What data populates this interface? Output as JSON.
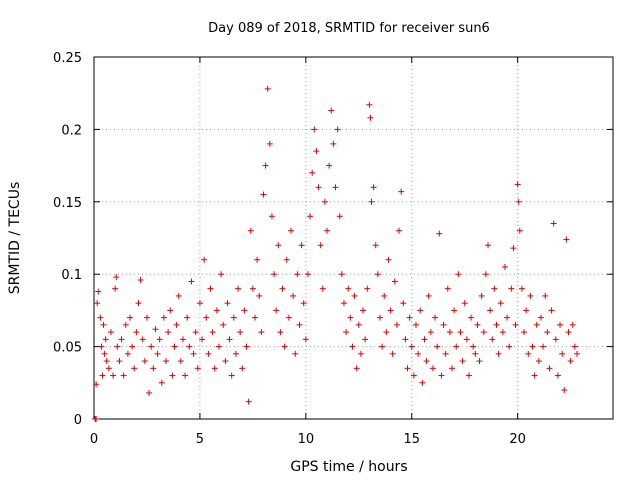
{
  "chart_data": {
    "type": "scatter",
    "title": "Day 089 of 2018, SRMTID for receiver sun6",
    "xlabel": "GPS time / hours",
    "ylabel": "SRMTID / TECUs",
    "xlim": [
      0,
      24.5
    ],
    "ylim": [
      0,
      0.25
    ],
    "xticks": [
      0,
      5,
      10,
      15,
      20
    ],
    "xtick_labels": [
      "0",
      "5",
      "10",
      "15",
      "20"
    ],
    "yticks": [
      0,
      0.05,
      0.1,
      0.15,
      0.2,
      0.25
    ],
    "ytick_labels": [
      "0",
      "0.05",
      "0.1",
      "0.15",
      "0.2",
      "0.25"
    ],
    "grid": true,
    "marker": "+",
    "color": "#e00000",
    "series": [
      {
        "name": "SRMTID",
        "points": [
          [
            0.05,
            0.0
          ],
          [
            0.1,
            0.0
          ],
          [
            0.1,
            0.024
          ],
          [
            0.15,
            0.08
          ],
          [
            0.2,
            0.088
          ],
          [
            0.3,
            0.07
          ],
          [
            0.35,
            0.05
          ],
          [
            0.4,
            0.03
          ],
          [
            0.45,
            0.065
          ],
          [
            0.5,
            0.045
          ],
          [
            0.55,
            0.055
          ],
          [
            0.6,
            0.04
          ],
          [
            0.7,
            0.035
          ],
          [
            0.8,
            0.06
          ],
          [
            0.9,
            0.03
          ],
          [
            1.0,
            0.09
          ],
          [
            1.05,
            0.098
          ],
          [
            1.1,
            0.05
          ],
          [
            1.2,
            0.04
          ],
          [
            1.3,
            0.055
          ],
          [
            1.4,
            0.03
          ],
          [
            1.5,
            0.065
          ],
          [
            1.6,
            0.045
          ],
          [
            1.7,
            0.07
          ],
          [
            1.8,
            0.05
          ],
          [
            1.9,
            0.035
          ],
          [
            2.0,
            0.06
          ],
          [
            2.1,
            0.08
          ],
          [
            2.2,
            0.096
          ],
          [
            2.3,
            0.055
          ],
          [
            2.4,
            0.04
          ],
          [
            2.5,
            0.07
          ],
          [
            2.6,
            0.018
          ],
          [
            2.7,
            0.05
          ],
          [
            2.8,
            0.035
          ],
          [
            2.9,
            0.062
          ],
          [
            3.0,
            0.045
          ],
          [
            3.1,
            0.055
          ],
          [
            3.2,
            0.025
          ],
          [
            3.3,
            0.07
          ],
          [
            3.4,
            0.04
          ],
          [
            3.5,
            0.06
          ],
          [
            3.6,
            0.075
          ],
          [
            3.7,
            0.03
          ],
          [
            3.8,
            0.05
          ],
          [
            3.9,
            0.065
          ],
          [
            4.0,
            0.085
          ],
          [
            4.1,
            0.04
          ],
          [
            4.2,
            0.055
          ],
          [
            4.3,
            0.03
          ],
          [
            4.4,
            0.07
          ],
          [
            4.5,
            0.05
          ],
          [
            4.6,
            0.095
          ],
          [
            4.7,
            0.045
          ],
          [
            4.8,
            0.06
          ],
          [
            4.9,
            0.035
          ],
          [
            5.0,
            0.08
          ],
          [
            5.1,
            0.055
          ],
          [
            5.2,
            0.11
          ],
          [
            5.3,
            0.07
          ],
          [
            5.4,
            0.045
          ],
          [
            5.5,
            0.09
          ],
          [
            5.6,
            0.06
          ],
          [
            5.7,
            0.035
          ],
          [
            5.8,
            0.075
          ],
          [
            5.9,
            0.05
          ],
          [
            6.0,
            0.1
          ],
          [
            6.1,
            0.065
          ],
          [
            6.2,
            0.04
          ],
          [
            6.3,
            0.08
          ],
          [
            6.4,
            0.055
          ],
          [
            6.5,
            0.03
          ],
          [
            6.6,
            0.07
          ],
          [
            6.7,
            0.045
          ],
          [
            6.8,
            0.09
          ],
          [
            6.9,
            0.06
          ],
          [
            7.0,
            0.035
          ],
          [
            7.1,
            0.075
          ],
          [
            7.2,
            0.05
          ],
          [
            7.3,
            0.012
          ],
          [
            7.4,
            0.13
          ],
          [
            7.5,
            0.09
          ],
          [
            7.6,
            0.07
          ],
          [
            7.7,
            0.11
          ],
          [
            7.8,
            0.085
          ],
          [
            7.9,
            0.06
          ],
          [
            8.0,
            0.155
          ],
          [
            8.1,
            0.175
          ],
          [
            8.2,
            0.228
          ],
          [
            8.3,
            0.19
          ],
          [
            8.4,
            0.14
          ],
          [
            8.5,
            0.1
          ],
          [
            8.6,
            0.075
          ],
          [
            8.7,
            0.12
          ],
          [
            8.8,
            0.06
          ],
          [
            8.9,
            0.09
          ],
          [
            9.0,
            0.05
          ],
          [
            9.1,
            0.11
          ],
          [
            9.2,
            0.07
          ],
          [
            9.3,
            0.13
          ],
          [
            9.4,
            0.085
          ],
          [
            9.5,
            0.045
          ],
          [
            9.6,
            0.1
          ],
          [
            9.7,
            0.065
          ],
          [
            9.8,
            0.12
          ],
          [
            9.9,
            0.08
          ],
          [
            10.0,
            0.055
          ],
          [
            10.1,
            0.1
          ],
          [
            10.2,
            0.14
          ],
          [
            10.3,
            0.17
          ],
          [
            10.4,
            0.2
          ],
          [
            10.5,
            0.185
          ],
          [
            10.6,
            0.16
          ],
          [
            10.7,
            0.12
          ],
          [
            10.8,
            0.09
          ],
          [
            10.9,
            0.15
          ],
          [
            11.0,
            0.13
          ],
          [
            11.1,
            0.175
          ],
          [
            11.2,
            0.213
          ],
          [
            11.3,
            0.19
          ],
          [
            11.4,
            0.16
          ],
          [
            11.5,
            0.2
          ],
          [
            11.6,
            0.14
          ],
          [
            11.7,
            0.1
          ],
          [
            11.8,
            0.08
          ],
          [
            11.9,
            0.06
          ],
          [
            12.0,
            0.09
          ],
          [
            12.1,
            0.07
          ],
          [
            12.2,
            0.05
          ],
          [
            12.3,
            0.085
          ],
          [
            12.4,
            0.035
          ],
          [
            12.5,
            0.065
          ],
          [
            12.6,
            0.045
          ],
          [
            12.7,
            0.075
          ],
          [
            12.8,
            0.055
          ],
          [
            12.9,
            0.09
          ],
          [
            13.0,
            0.217
          ],
          [
            13.05,
            0.208
          ],
          [
            13.1,
            0.15
          ],
          [
            13.2,
            0.16
          ],
          [
            13.3,
            0.12
          ],
          [
            13.4,
            0.1
          ],
          [
            13.5,
            0.07
          ],
          [
            13.6,
            0.05
          ],
          [
            13.7,
            0.085
          ],
          [
            13.8,
            0.06
          ],
          [
            13.9,
            0.11
          ],
          [
            14.0,
            0.075
          ],
          [
            14.1,
            0.045
          ],
          [
            14.2,
            0.095
          ],
          [
            14.3,
            0.065
          ],
          [
            14.4,
            0.13
          ],
          [
            14.5,
            0.157
          ],
          [
            14.6,
            0.08
          ],
          [
            14.7,
            0.055
          ],
          [
            14.8,
            0.035
          ],
          [
            14.9,
            0.07
          ],
          [
            15.0,
            0.05
          ],
          [
            15.1,
            0.03
          ],
          [
            15.2,
            0.065
          ],
          [
            15.3,
            0.045
          ],
          [
            15.4,
            0.075
          ],
          [
            15.5,
            0.025
          ],
          [
            15.6,
            0.055
          ],
          [
            15.7,
            0.04
          ],
          [
            15.8,
            0.085
          ],
          [
            15.9,
            0.06
          ],
          [
            16.0,
            0.035
          ],
          [
            16.1,
            0.07
          ],
          [
            16.2,
            0.05
          ],
          [
            16.3,
            0.128
          ],
          [
            16.4,
            0.03
          ],
          [
            16.5,
            0.065
          ],
          [
            16.6,
            0.045
          ],
          [
            16.7,
            0.09
          ],
          [
            16.8,
            0.06
          ],
          [
            16.9,
            0.035
          ],
          [
            17.0,
            0.075
          ],
          [
            17.1,
            0.05
          ],
          [
            17.2,
            0.1
          ],
          [
            17.3,
            0.06
          ],
          [
            17.4,
            0.04
          ],
          [
            17.5,
            0.08
          ],
          [
            17.6,
            0.055
          ],
          [
            17.7,
            0.03
          ],
          [
            17.8,
            0.07
          ],
          [
            17.9,
            0.05
          ],
          [
            18.0,
            0.045
          ],
          [
            18.1,
            0.065
          ],
          [
            18.2,
            0.04
          ],
          [
            18.3,
            0.085
          ],
          [
            18.4,
            0.06
          ],
          [
            18.5,
            0.1
          ],
          [
            18.6,
            0.12
          ],
          [
            18.7,
            0.075
          ],
          [
            18.8,
            0.055
          ],
          [
            18.9,
            0.09
          ],
          [
            19.0,
            0.065
          ],
          [
            19.1,
            0.045
          ],
          [
            19.2,
            0.08
          ],
          [
            19.3,
            0.06
          ],
          [
            19.4,
            0.105
          ],
          [
            19.5,
            0.07
          ],
          [
            19.6,
            0.05
          ],
          [
            19.7,
            0.09
          ],
          [
            19.8,
            0.118
          ],
          [
            19.9,
            0.065
          ],
          [
            20.0,
            0.162
          ],
          [
            20.05,
            0.15
          ],
          [
            20.1,
            0.13
          ],
          [
            20.2,
            0.09
          ],
          [
            20.3,
            0.06
          ],
          [
            20.4,
            0.075
          ],
          [
            20.5,
            0.045
          ],
          [
            20.6,
            0.085
          ],
          [
            20.7,
            0.05
          ],
          [
            20.8,
            0.03
          ],
          [
            20.9,
            0.065
          ],
          [
            21.0,
            0.04
          ],
          [
            21.1,
            0.07
          ],
          [
            21.2,
            0.05
          ],
          [
            21.3,
            0.085
          ],
          [
            21.4,
            0.06
          ],
          [
            21.5,
            0.035
          ],
          [
            21.6,
            0.075
          ],
          [
            21.7,
            0.135
          ],
          [
            21.8,
            0.055
          ],
          [
            21.9,
            0.03
          ],
          [
            22.0,
            0.065
          ],
          [
            22.1,
            0.045
          ],
          [
            22.2,
            0.02
          ],
          [
            22.3,
            0.124
          ],
          [
            22.4,
            0.06
          ],
          [
            22.5,
            0.04
          ],
          [
            22.6,
            0.065
          ],
          [
            22.7,
            0.05
          ],
          [
            22.8,
            0.045
          ]
        ]
      }
    ]
  }
}
